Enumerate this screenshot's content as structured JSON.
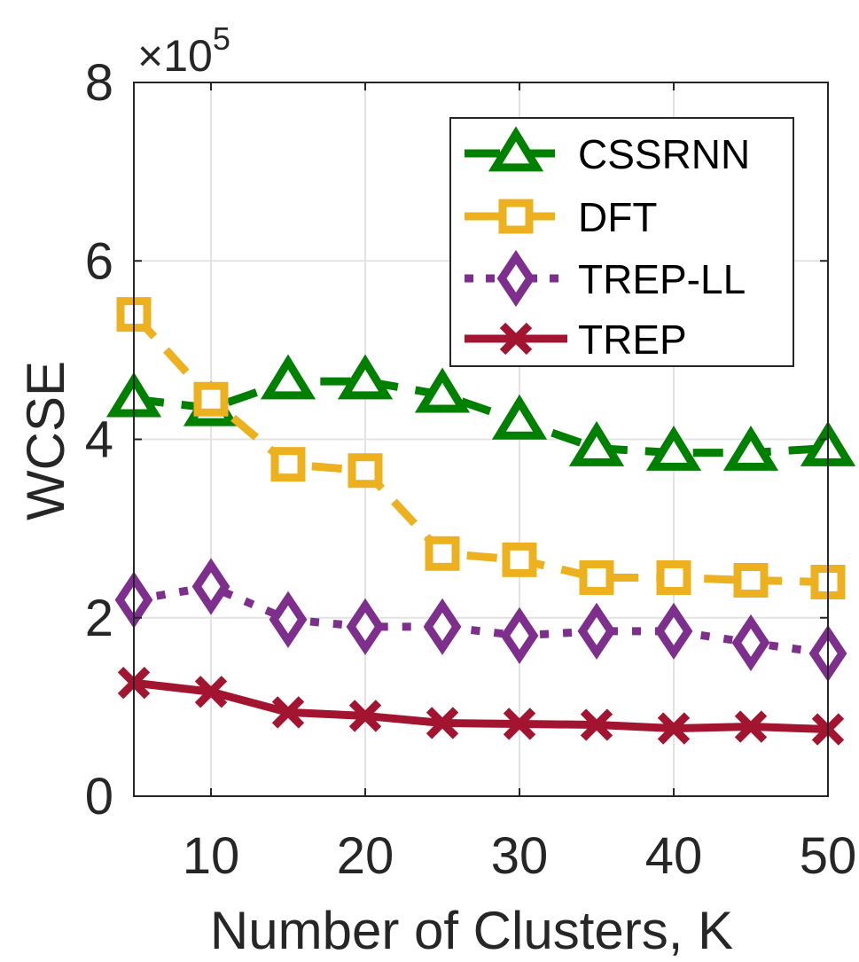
{
  "chart_data": {
    "type": "line",
    "xlabel": "Number of Clusters, K",
    "ylabel": "WCSE",
    "exponent_label": {
      "base": "×10",
      "power": "5"
    },
    "xlim": [
      5,
      50
    ],
    "ylim": [
      0,
      8
    ],
    "xticks": [
      "10",
      "20",
      "30",
      "40",
      "50"
    ],
    "yticks": [
      "0",
      "2",
      "4",
      "6",
      "8"
    ],
    "grid": true,
    "legend_position": "top-right",
    "x": [
      5,
      10,
      15,
      20,
      25,
      30,
      35,
      40,
      45,
      50
    ],
    "series": [
      {
        "name": "CSSRNN",
        "color": "#008000",
        "marker": "triangle",
        "linestyle": "dashed",
        "values": [
          4.45,
          4.35,
          4.65,
          4.65,
          4.5,
          4.2,
          3.9,
          3.85,
          3.85,
          3.9
        ]
      },
      {
        "name": "DFT",
        "color": "#EDB120",
        "marker": "square",
        "linestyle": "dashed",
        "values": [
          5.4,
          4.45,
          3.72,
          3.65,
          2.72,
          2.65,
          2.45,
          2.45,
          2.42,
          2.4
        ]
      },
      {
        "name": "TREP-LL",
        "color": "#7E2F8E",
        "marker": "diamond",
        "linestyle": "dotted",
        "values": [
          2.2,
          2.35,
          1.98,
          1.9,
          1.9,
          1.8,
          1.85,
          1.85,
          1.72,
          1.6
        ]
      },
      {
        "name": "TREP",
        "color": "#A2142F",
        "marker": "x",
        "linestyle": "solid",
        "values": [
          1.27,
          1.17,
          0.94,
          0.9,
          0.82,
          0.81,
          0.8,
          0.76,
          0.78,
          0.75
        ]
      }
    ]
  }
}
